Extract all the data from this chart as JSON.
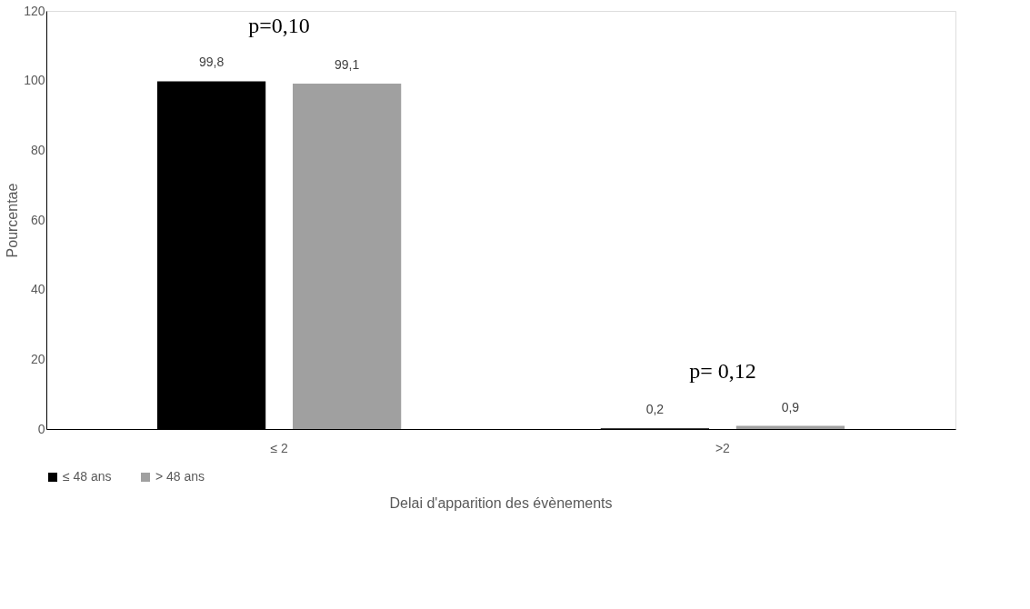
{
  "chart_data": {
    "type": "bar",
    "xlabel": "Delai d'apparition des évènements",
    "ylabel": "Pourcentae",
    "categories": [
      "≤ 2",
      ">2"
    ],
    "series": [
      {
        "name": "≤ 48 ans",
        "color": "#000000",
        "values": [
          99.8,
          0.2
        ],
        "value_labels": [
          "99,8",
          "0,2"
        ]
      },
      {
        "name": "> 48 ans",
        "color": "#a0a0a0",
        "values": [
          99.1,
          0.9
        ],
        "value_labels": [
          "99,1",
          "0,9"
        ]
      }
    ],
    "ylim": [
      0,
      120
    ],
    "yticks": [
      0,
      20,
      40,
      60,
      80,
      100,
      120
    ],
    "grid": false,
    "legend": "bottom",
    "annotations": [
      "p=0,10",
      "p= 0,12"
    ]
  }
}
